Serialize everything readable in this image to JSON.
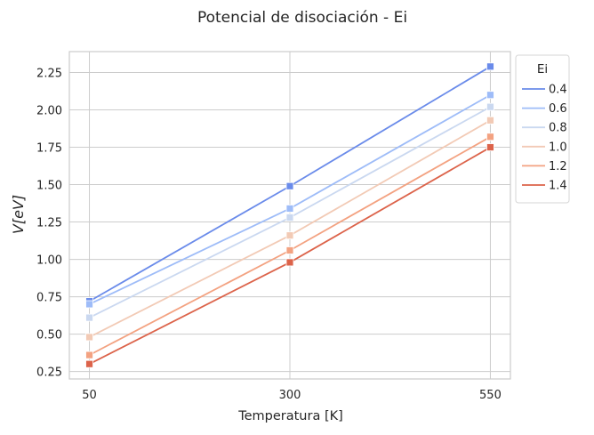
{
  "chart_data": {
    "type": "line",
    "title": "Potencial de disociación - Ei",
    "xlabel": "Temperatura [K]",
    "ylabel": "V[eV]",
    "x": [
      50,
      300,
      550
    ],
    "x_ticks": [
      "50",
      "300",
      "550"
    ],
    "y_ticks": [
      "0.25",
      "0.50",
      "0.75",
      "1.00",
      "1.25",
      "1.50",
      "1.75",
      "2.00",
      "2.25"
    ],
    "ylim": [
      0.2,
      2.39
    ],
    "grid": true,
    "legend": {
      "title": "Ei",
      "placement": "outside upper-right"
    },
    "series": [
      {
        "name": "0.4",
        "color": "#6a8bea",
        "values": [
          0.72,
          1.49,
          2.29
        ]
      },
      {
        "name": "0.6",
        "color": "#9ebcf8",
        "values": [
          0.7,
          1.34,
          2.1
        ]
      },
      {
        "name": "0.8",
        "color": "#cad8f0",
        "values": [
          0.61,
          1.28,
          2.02
        ]
      },
      {
        "name": "1.0",
        "color": "#f2cab5",
        "values": [
          0.48,
          1.16,
          1.93
        ]
      },
      {
        "name": "1.2",
        "color": "#f3a281",
        "values": [
          0.36,
          1.06,
          1.82
        ]
      },
      {
        "name": "1.4",
        "color": "#dc634a",
        "values": [
          0.3,
          0.98,
          1.75
        ]
      }
    ]
  }
}
